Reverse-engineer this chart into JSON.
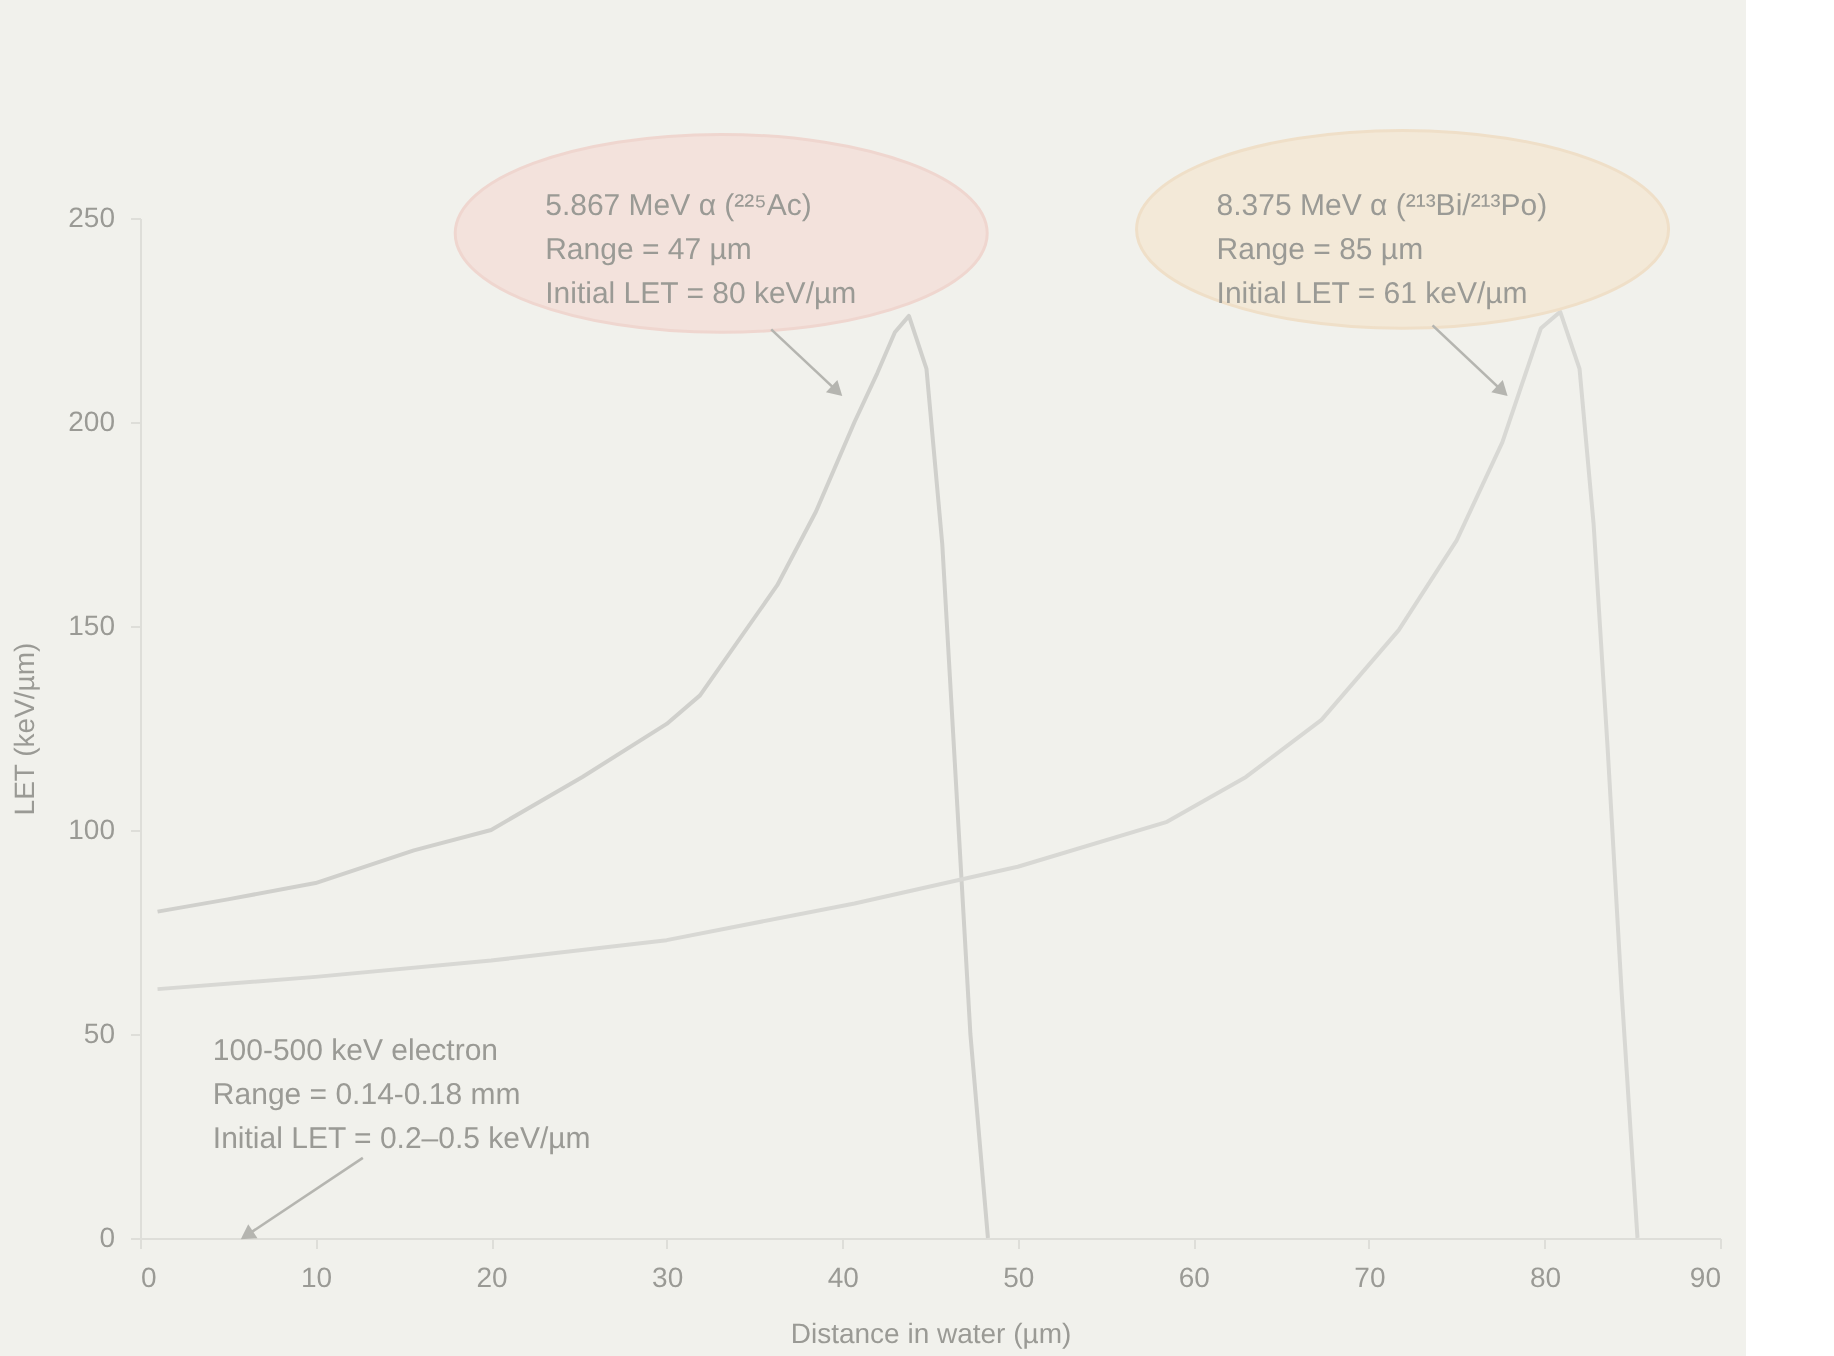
{
  "chart_data": {
    "type": "line",
    "xlabel": "Distance in water (µm)",
    "ylabel": "LET (keV/µm)",
    "xlim": [
      0,
      90
    ],
    "xticks": [
      0,
      10,
      20,
      30,
      40,
      50,
      60,
      70,
      80,
      90
    ],
    "ylim": [
      0,
      250
    ],
    "yticks": [
      0,
      50,
      100,
      150,
      200,
      250
    ],
    "grid": false,
    "marker": "none",
    "line_style": "solid",
    "series": [
      {
        "color": "#d0d0cc",
        "x": [
          1,
          5,
          10,
          15.6,
          20,
          25.2,
          30,
          31.9,
          36.3,
          38.5,
          40.7,
          42,
          43,
          43.8,
          44.8,
          45.7,
          46.5,
          47.3,
          48.3
        ],
        "values": [
          80,
          83,
          87,
          95,
          100,
          113,
          126,
          133,
          160,
          178,
          200,
          212,
          222,
          226,
          213,
          170,
          110,
          50,
          0
        ]
      },
      {
        "color": "#d8d8d4",
        "x": [
          1,
          10,
          20,
          30,
          40.7,
          50,
          58.5,
          63,
          67.3,
          71.7,
          75,
          77.6,
          79.8,
          80.9,
          82,
          82.8,
          83.6,
          84.4,
          85.3
        ],
        "values": [
          61,
          64,
          68,
          73,
          82,
          91,
          102,
          113,
          127,
          149,
          171,
          195,
          223,
          227,
          213,
          175,
          120,
          60,
          0
        ]
      }
    ],
    "annotations": [
      {
        "text": "5.867 MeV α (²²⁵Ac)\nRange = 47 µm\nInitial LET = 80 keV/µm",
        "x": 39.6,
        "y": 208
      },
      {
        "text": "8.375 MeV α (²¹³Bi/²¹³Po)\nRange = 85 µm\nInitial LET = 61 keV/µm",
        "x": 77.5,
        "y": 208
      },
      {
        "text": "100-500 keV electron\nRange = 0.14-0.18 mm\nInitial LET = 0.2–0.5 keV/µm",
        "x": 6.2,
        "y": 1
      }
    ]
  }
}
